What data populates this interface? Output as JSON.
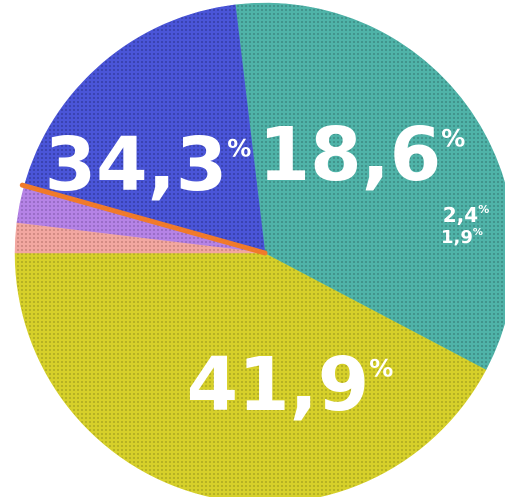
{
  "chart_data": {
    "type": "pie",
    "slices": [
      {
        "label": "41,9",
        "value": 41.9,
        "color": "#d6d02a",
        "dot": "#6a6a10"
      },
      {
        "label": "34,3",
        "value": 34.3,
        "color": "#4fb3a8",
        "dot": "#1f4c48"
      },
      {
        "label": "18,6",
        "value": 18.6,
        "color": "#4a55d8",
        "dot": "#14185a"
      },
      {
        "label": "2,4",
        "value": 2.4,
        "color": "#b583e6",
        "dot": "#5a3a80"
      },
      {
        "label": "1,9",
        "value": 1.9,
        "color": "#f2a7a0",
        "dot": "#8a4a44"
      }
    ],
    "percent_sign": "%",
    "value_unit": "percent",
    "start_at": "9 o'clock, going clockwise",
    "accent_line_color": "#f07a2a"
  }
}
